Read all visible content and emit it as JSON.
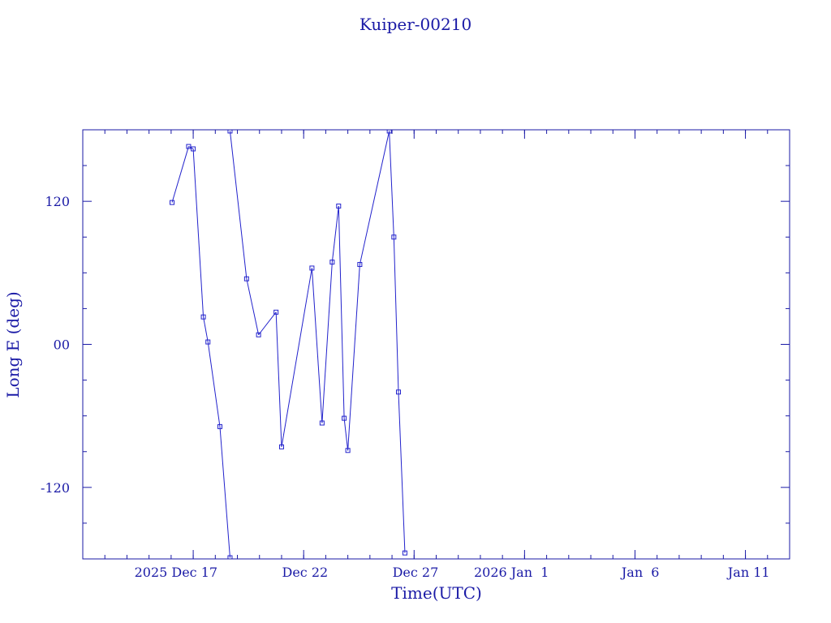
{
  "chart_data": {
    "type": "line",
    "title": "Kuiper-00210",
    "xlabel": "Time(UTC)",
    "ylabel": "Long E (deg)",
    "ylim": [
      -180,
      180
    ],
    "xlim": [
      "2025-12-12T00:00",
      "2026-01-13T00:00"
    ],
    "x_tick_labels": [
      "2025 Dec 17",
      "Dec 22",
      "Dec 27",
      "2026 Jan  1",
      "Jan  6",
      "Jan 11"
    ],
    "x_tick_dates": [
      "2025-12-17T00:00",
      "2025-12-22T00:00",
      "2025-12-27T00:00",
      "2026-01-01T00:00",
      "2026-01-06T00:00",
      "2026-01-11T00:00"
    ],
    "y_tick_labels": [
      "120",
      "00",
      "-120"
    ],
    "y_tick_values": [
      120,
      0,
      -120
    ],
    "grid": false,
    "colors": {
      "line": "#2222cc",
      "marker": "#2222cc",
      "axis": "#1a1aa6",
      "text": "#1a1aa6"
    },
    "series": [
      {
        "values": [
          [
            "2025-12-16T01:00",
            119
          ],
          [
            "2025-12-16T19:00",
            166
          ],
          [
            "2025-12-17T00:00",
            164
          ],
          [
            "2025-12-17T11:00",
            23
          ],
          [
            "2025-12-17T16:00",
            2
          ],
          [
            "2025-12-18T05:00",
            -69
          ],
          [
            "2025-12-18T16:00",
            -179
          ],
          [
            "2025-12-18T16:00",
            179
          ],
          [
            "2025-12-19T10:00",
            55
          ],
          [
            "2025-12-19T23:00",
            8
          ],
          [
            "2025-12-20T18:00",
            27
          ],
          [
            "2025-12-21T00:00",
            -86
          ],
          [
            "2025-12-22T09:00",
            64
          ],
          [
            "2025-12-22T20:00",
            -66
          ],
          [
            "2025-12-23T07:00",
            69
          ],
          [
            "2025-12-23T14:00",
            116
          ],
          [
            "2025-12-23T20:00",
            -62
          ],
          [
            "2025-12-24T00:00",
            -89
          ],
          [
            "2025-12-24T13:00",
            67
          ],
          [
            "2025-12-25T21:00",
            179
          ],
          [
            "2025-12-26T02:00",
            90
          ],
          [
            "2025-12-26T07:00",
            -40
          ],
          [
            "2025-12-26T14:00",
            -175
          ]
        ]
      }
    ]
  }
}
